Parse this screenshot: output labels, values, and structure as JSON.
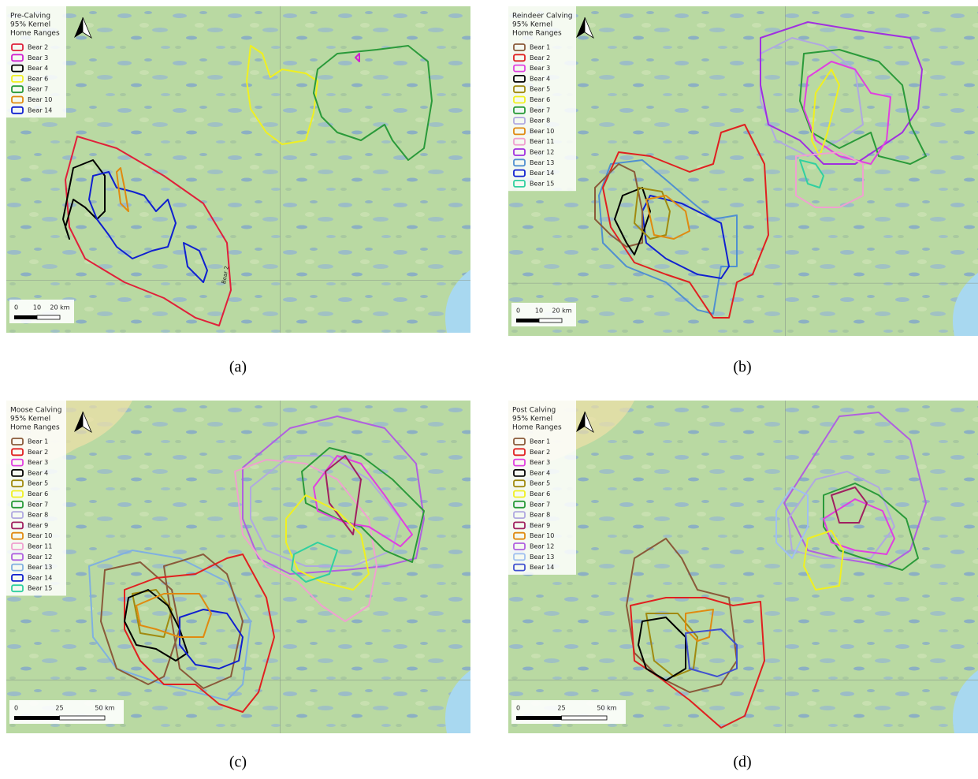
{
  "panels": [
    {
      "title": [
        "Pre-Calving",
        "95% Kernel",
        "Home Ranges"
      ],
      "legend": [
        {
          "name": "Bear 2",
          "color": "#e0203a"
        },
        {
          "name": "Bear 3",
          "color": "#d020d0"
        },
        {
          "name": "Bear 4",
          "color": "#000000"
        },
        {
          "name": "Bear 6",
          "color": "#f0f020"
        },
        {
          "name": "Bear 7",
          "color": "#2a9a3a"
        },
        {
          "name": "Bear 10",
          "color": "#e08a10"
        },
        {
          "name": "Bear 14",
          "color": "#1020d0"
        }
      ],
      "scale_labels": [
        "0",
        "10",
        "20 km"
      ],
      "map_label": "Bear 2",
      "caption": "(a)"
    },
    {
      "title": [
        "Reindeer Calving",
        "95% Kernel",
        "Home Ranges"
      ],
      "legend": [
        {
          "name": "Bear 1",
          "color": "#8a5a3a"
        },
        {
          "name": "Bear 2",
          "color": "#e02020"
        },
        {
          "name": "Bear 3",
          "color": "#e040e0"
        },
        {
          "name": "Bear 4",
          "color": "#000000"
        },
        {
          "name": "Bear 5",
          "color": "#a08a10"
        },
        {
          "name": "Bear 6",
          "color": "#f0f020"
        },
        {
          "name": "Bear 7",
          "color": "#2a9a3a"
        },
        {
          "name": "Bear 8",
          "color": "#b0a8e0"
        },
        {
          "name": "Bear 10",
          "color": "#e08a10"
        },
        {
          "name": "Bear 11",
          "color": "#f0a0d0"
        },
        {
          "name": "Bear 12",
          "color": "#a030e0"
        },
        {
          "name": "Bear 13",
          "color": "#5090d0"
        },
        {
          "name": "Bear 14",
          "color": "#1020d0"
        },
        {
          "name": "Bear 15",
          "color": "#30d0a0"
        }
      ],
      "scale_labels": [
        "0",
        "10",
        "20 km"
      ],
      "caption": "(b)"
    },
    {
      "title": [
        "Moose Calving",
        "95% Kernel",
        "Home Ranges"
      ],
      "legend": [
        {
          "name": "Bear 1",
          "color": "#8a5a3a"
        },
        {
          "name": "Bear 2",
          "color": "#e02020"
        },
        {
          "name": "Bear 3",
          "color": "#e040e0"
        },
        {
          "name": "Bear 4",
          "color": "#000000"
        },
        {
          "name": "Bear 5",
          "color": "#a08a10"
        },
        {
          "name": "Bear 6",
          "color": "#f0f020"
        },
        {
          "name": "Bear 7",
          "color": "#2a9a3a"
        },
        {
          "name": "Bear 8",
          "color": "#b0a8e0"
        },
        {
          "name": "Bear 9",
          "color": "#a02060"
        },
        {
          "name": "Bear 10",
          "color": "#e08a10"
        },
        {
          "name": "Bear 11",
          "color": "#f0a0d0"
        },
        {
          "name": "Bear 12",
          "color": "#b060e0"
        },
        {
          "name": "Bear 13",
          "color": "#80b0e0"
        },
        {
          "name": "Bear 14",
          "color": "#1020d0"
        },
        {
          "name": "Bear 15",
          "color": "#30d0a0"
        }
      ],
      "scale_labels": [
        "0",
        "25",
        "50 km"
      ],
      "caption": "(c)"
    },
    {
      "title": [
        "Post Calving",
        "95% Kernel",
        "Home Ranges"
      ],
      "legend": [
        {
          "name": "Bear 1",
          "color": "#8a5a3a"
        },
        {
          "name": "Bear 2",
          "color": "#e02020"
        },
        {
          "name": "Bear 3",
          "color": "#e040e0"
        },
        {
          "name": "Bear 4",
          "color": "#000000"
        },
        {
          "name": "Bear 5",
          "color": "#a08a10"
        },
        {
          "name": "Bear 6",
          "color": "#f0f020"
        },
        {
          "name": "Bear 7",
          "color": "#2a9a3a"
        },
        {
          "name": "Bear 8",
          "color": "#b0a8e0"
        },
        {
          "name": "Bear 9",
          "color": "#a02060"
        },
        {
          "name": "Bear 10",
          "color": "#e08a10"
        },
        {
          "name": "Bear 12",
          "color": "#b060e0"
        },
        {
          "name": "Bear 13",
          "color": "#a0c0f0"
        },
        {
          "name": "Bear 14",
          "color": "#4050d0"
        }
      ],
      "scale_labels": [
        "0",
        "25",
        "50 km"
      ],
      "caption": "(d)"
    }
  ]
}
